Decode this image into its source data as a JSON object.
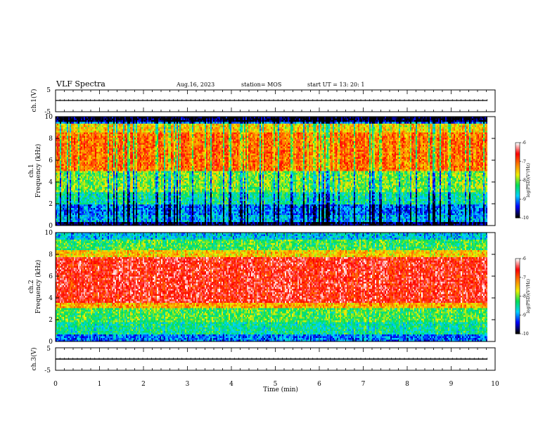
{
  "header": {
    "title": "VLF Spectra",
    "date": "Aug.16, 2023",
    "station": "station= MOS",
    "start": "start  UT  =   13: 20: 1"
  },
  "chart_data": [
    {
      "type": "line",
      "panel": "ch1-voltage",
      "ylabel": "ch.1(V)",
      "ylim": [
        -5,
        5
      ],
      "yticks": [
        "5",
        "-5"
      ],
      "xlim": [
        0,
        10
      ],
      "series": [
        {
          "values_x": [
            0,
            9.82
          ],
          "values_y": [
            0,
            0
          ]
        }
      ]
    },
    {
      "type": "heatmap",
      "panel": "ch1-spectrogram",
      "ylabel": "ch.1 Frequency (kHz)",
      "ylim": [
        0,
        10
      ],
      "yticks": [
        "0",
        "2",
        "4",
        "6",
        "8",
        "10"
      ],
      "xlim": [
        0,
        10
      ],
      "colorbar": {
        "label": "log(PSD)(V²/Hz)",
        "range": [
          -10,
          -6
        ],
        "ticks": [
          "-6",
          "-7",
          "-8",
          "-9",
          "-10"
        ]
      }
    },
    {
      "type": "heatmap",
      "panel": "ch2-spectrogram",
      "ylabel": "ch.2 Frequency (kHz)",
      "ylim": [
        0,
        10
      ],
      "yticks": [
        "0",
        "2",
        "4",
        "6",
        "8",
        "10"
      ],
      "xlim": [
        0,
        10
      ],
      "colorbar": {
        "label": "log(PSD)(V²/Hz)",
        "range": [
          -10,
          -6
        ],
        "ticks": [
          "-6",
          "-7",
          "-8",
          "-9",
          "-10"
        ]
      }
    },
    {
      "type": "line",
      "panel": "ch3-voltage",
      "ylabel": "ch.3(V)",
      "ylim": [
        -5,
        5
      ],
      "yticks": [
        "5",
        "-5"
      ],
      "xlim": [
        0,
        10
      ],
      "series": [
        {
          "values_x": [
            0,
            9.82
          ],
          "values_y": [
            0,
            0
          ]
        }
      ]
    }
  ],
  "xaxis": {
    "label": "Time  (min)",
    "ticks": [
      "0",
      "1",
      "2",
      "3",
      "4",
      "5",
      "6",
      "7",
      "8",
      "9",
      "10"
    ]
  },
  "colorbar": {
    "label_ch1": "log(PSD)(V²/Hz)",
    "label_ch2": "log(PSD)(V²/Hz)"
  },
  "colors": {
    "background": "#ffffff",
    "axis": "#000000",
    "colormap": [
      "#000000",
      "#0000ff",
      "#00d4ff",
      "#00e05a",
      "#f0f000",
      "#ff7f00",
      "#ff0000",
      "#ffffff"
    ]
  }
}
